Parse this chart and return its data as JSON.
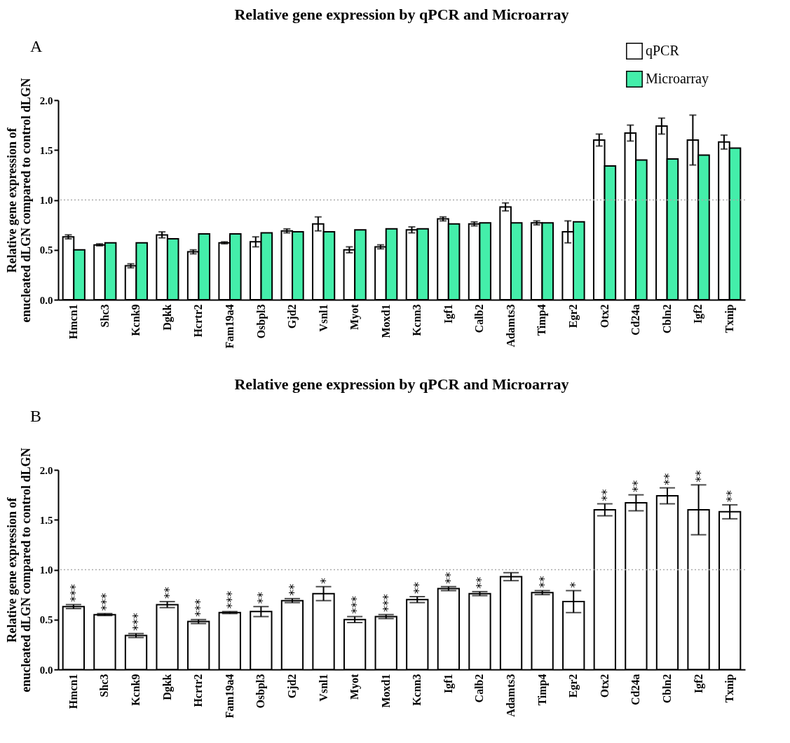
{
  "chart_data": [
    {
      "type": "bar",
      "title": "Relative gene expression by qPCR and Microarray",
      "ylabel": "Relative gene expression of enucleated dLGN compared to control dLGN",
      "annotations": [
        "A"
      ],
      "categories": [
        "Hmcn1",
        "Shc3",
        "Kcnk9",
        "Dgkk",
        "Hcrtr2",
        "Fam19a4",
        "Osbpl3",
        "Gjd2",
        "Vsnl1",
        "Myot",
        "Moxd1",
        "Kcnn3",
        "Igf1",
        "Calb2",
        "Adamts3",
        "Timp4",
        "Egr2",
        "Otx2",
        "Cd24a",
        "Cbln2",
        "Igf2",
        "Txnip"
      ],
      "series": [
        {
          "name": "qPCR",
          "color": "#ffffff",
          "values": [
            0.63,
            0.55,
            0.34,
            0.65,
            0.48,
            0.57,
            0.58,
            0.69,
            0.76,
            0.5,
            0.53,
            0.7,
            0.81,
            0.76,
            0.93,
            0.77,
            0.68,
            1.6,
            1.67,
            1.74,
            1.6,
            1.58
          ],
          "errors": [
            0.02,
            0.01,
            0.02,
            0.03,
            0.02,
            0.01,
            0.05,
            0.02,
            0.07,
            0.03,
            0.02,
            0.03,
            0.02,
            0.02,
            0.04,
            0.02,
            0.11,
            0.06,
            0.08,
            0.08,
            0.25,
            0.07
          ]
        },
        {
          "name": "Microarray",
          "color": "#44eeaa",
          "values": [
            0.5,
            0.57,
            0.57,
            0.61,
            0.66,
            0.66,
            0.67,
            0.68,
            0.68,
            0.7,
            0.71,
            0.71,
            0.76,
            0.77,
            0.77,
            0.77,
            0.78,
            1.34,
            1.4,
            1.41,
            1.45,
            1.52
          ]
        }
      ],
      "ylim": [
        0,
        2
      ],
      "yticks": [
        {
          "value": 0,
          "label": "0.0"
        },
        {
          "value": 0.5,
          "label": "0.5"
        },
        {
          "value": 1,
          "label": "1.0"
        },
        {
          "value": 1.5,
          "label": "1.5"
        },
        {
          "value": 2,
          "label": "2.0"
        }
      ],
      "ref_lines": [
        {
          "axis": "y",
          "value": 1,
          "color": "#aaaaaa",
          "line_style": "dotted"
        }
      ],
      "legend": "top right",
      "grid": false
    },
    {
      "type": "bar",
      "title": "Relative gene expression by qPCR and Microarray",
      "ylabel": "Relative gene expression of enucleated dLGN compared to control dLGN",
      "annotations": [
        "B",
        {
          "text": "***",
          "x": "Hmcn1",
          "y": 0.65
        },
        {
          "text": "***",
          "x": "Shc3",
          "y": 0.56
        },
        {
          "text": "***",
          "x": "Kcnk9",
          "y": 0.36
        },
        {
          "text": "**",
          "x": "Dgkk",
          "y": 0.68
        },
        {
          "text": "***",
          "x": "Hcrtr2",
          "y": 0.5
        },
        {
          "text": "***",
          "x": "Fam19a4",
          "y": 0.58
        },
        {
          "text": "**",
          "x": "Osbpl3",
          "y": 0.63
        },
        {
          "text": "**",
          "x": "Gjd2",
          "y": 0.71
        },
        {
          "text": "*",
          "x": "Vsnl1",
          "y": 0.83
        },
        {
          "text": "***",
          "x": "Myot",
          "y": 0.53
        },
        {
          "text": "***",
          "x": "Moxd1",
          "y": 0.55
        },
        {
          "text": "**",
          "x": "Kcnn3",
          "y": 0.73
        },
        {
          "text": "**",
          "x": "Igf1",
          "y": 0.83
        },
        {
          "text": "**",
          "x": "Calb2",
          "y": 0.78
        },
        {
          "text": "**",
          "x": "Timp4",
          "y": 0.79
        },
        {
          "text": "*",
          "x": "Egr2",
          "y": 0.79
        },
        {
          "text": "**",
          "x": "Otx2",
          "y": 1.66
        },
        {
          "text": "**",
          "x": "Cd24a",
          "y": 1.75
        },
        {
          "text": "**",
          "x": "Cbln2",
          "y": 1.82
        },
        {
          "text": "**",
          "x": "Igf2",
          "y": 1.85
        },
        {
          "text": "**",
          "x": "Txnip",
          "y": 1.65
        }
      ],
      "categories": [
        "Hmcn1",
        "Shc3",
        "Kcnk9",
        "Dgkk",
        "Hcrtr2",
        "Fam19a4",
        "Osbpl3",
        "Gjd2",
        "Vsnl1",
        "Myot",
        "Moxd1",
        "Kcnn3",
        "Igf1",
        "Calb2",
        "Adamts3",
        "Timp4",
        "Egr2",
        "Otx2",
        "Cd24a",
        "Cbln2",
        "Igf2",
        "Txnip"
      ],
      "series": [
        {
          "color": "#ffffff",
          "values": [
            0.63,
            0.55,
            0.34,
            0.65,
            0.48,
            0.57,
            0.58,
            0.69,
            0.76,
            0.5,
            0.53,
            0.7,
            0.81,
            0.76,
            0.93,
            0.77,
            0.68,
            1.6,
            1.67,
            1.74,
            1.6,
            1.58
          ],
          "errors": [
            0.02,
            0.01,
            0.02,
            0.03,
            0.02,
            0.01,
            0.05,
            0.02,
            0.07,
            0.03,
            0.02,
            0.03,
            0.02,
            0.02,
            0.04,
            0.02,
            0.11,
            0.06,
            0.08,
            0.08,
            0.25,
            0.07
          ]
        }
      ],
      "ylim": [
        0,
        2
      ],
      "yticks": [
        {
          "value": 0,
          "label": "0.0"
        },
        {
          "value": 0.5,
          "label": "0.5"
        },
        {
          "value": 1,
          "label": "1.0"
        },
        {
          "value": 1.5,
          "label": "1.5"
        },
        {
          "value": 2,
          "label": "2.0"
        }
      ],
      "ref_lines": [
        {
          "axis": "y",
          "value": 1,
          "color": "#aaaaaa",
          "line_style": "dotted"
        }
      ],
      "legend": false,
      "grid": false
    }
  ]
}
